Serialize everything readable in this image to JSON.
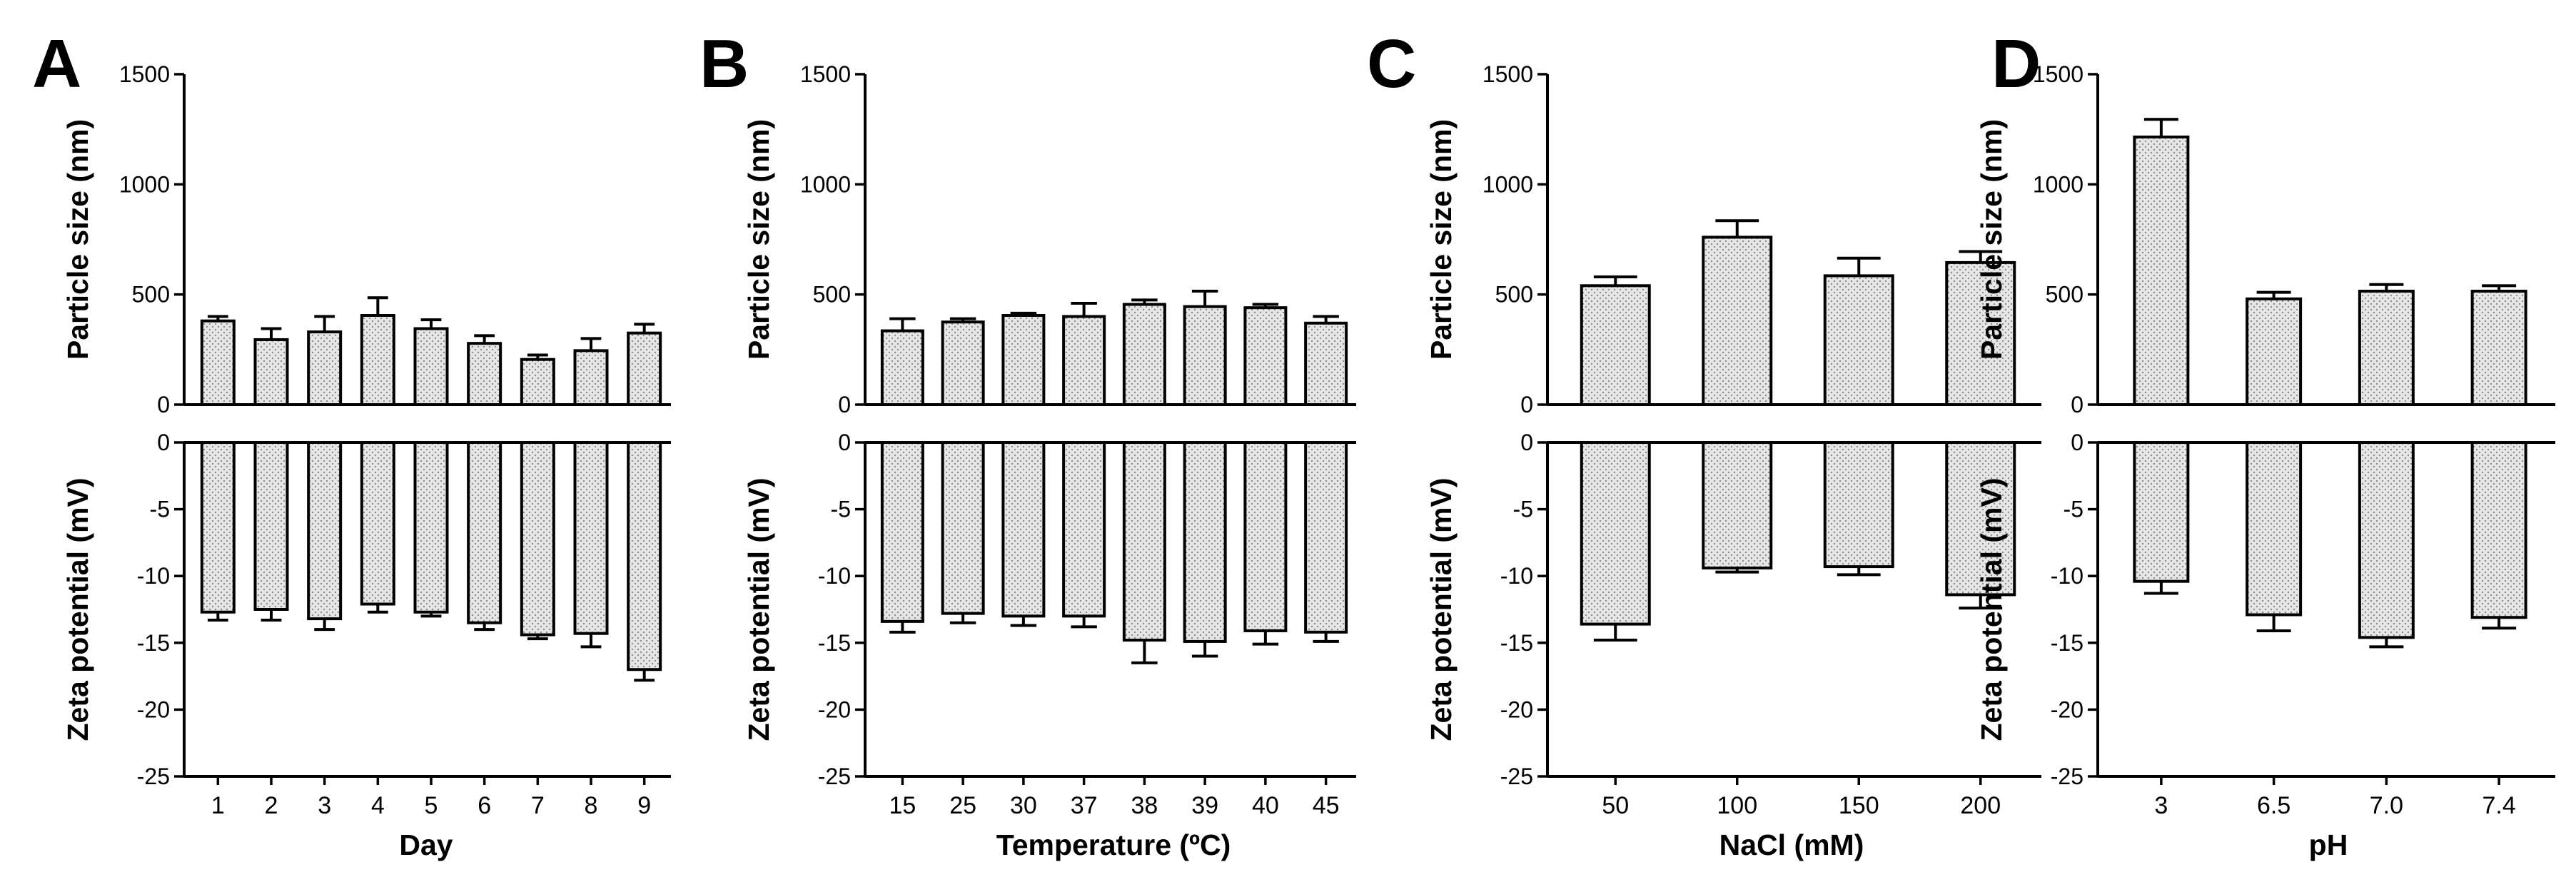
{
  "colors": {
    "bar_fill": "#e6e6e6",
    "bar_dots": "#8c8c8c",
    "axis": "#000000"
  },
  "chart_data": [
    {
      "panel": "A",
      "type": "bar",
      "xlabel": "Day",
      "categories": [
        "1",
        "2",
        "3",
        "4",
        "5",
        "6",
        "7",
        "8",
        "9"
      ],
      "top": {
        "ylabel": "Particle size (nm)",
        "ylim": [
          0,
          1500
        ],
        "yticks": [
          "0",
          "500",
          "1000",
          "1500"
        ],
        "values": [
          380,
          295,
          330,
          405,
          345,
          278,
          205,
          245,
          325
        ],
        "errors": [
          20,
          50,
          70,
          80,
          40,
          35,
          20,
          55,
          40
        ]
      },
      "bottom": {
        "ylabel": "Zeta potential (mV)",
        "ylim": [
          -25,
          0
        ],
        "yticks": [
          "0",
          "-5",
          "-10",
          "-15",
          "-20",
          "-25"
        ],
        "values": [
          -12.7,
          -12.5,
          -13.2,
          -12.1,
          -12.7,
          -13.5,
          -14.4,
          -14.3,
          -17.0
        ],
        "errors": [
          0.6,
          0.8,
          0.8,
          0.6,
          0.3,
          0.5,
          0.3,
          1.0,
          0.8
        ]
      }
    },
    {
      "panel": "B",
      "type": "bar",
      "xlabel": "Temperature (ºC)",
      "categories": [
        "15",
        "25",
        "30",
        "37",
        "38",
        "39",
        "40",
        "45"
      ],
      "top": {
        "ylabel": "Particle size (nm)",
        "ylim": [
          0,
          1500
        ],
        "yticks": [
          "0",
          "500",
          "1000",
          "1500"
        ],
        "values": [
          335,
          375,
          405,
          400,
          455,
          445,
          440,
          370
        ],
        "errors": [
          55,
          15,
          10,
          60,
          20,
          70,
          15,
          30
        ]
      },
      "bottom": {
        "ylabel": "Zeta potential (mV)",
        "ylim": [
          -25,
          0
        ],
        "yticks": [
          "0",
          "-5",
          "-10",
          "-15",
          "-20",
          "-25"
        ],
        "values": [
          -13.4,
          -12.8,
          -13.0,
          -13.0,
          -14.8,
          -14.9,
          -14.1,
          -14.2
        ],
        "errors": [
          0.8,
          0.7,
          0.7,
          0.8,
          1.7,
          1.1,
          1.0,
          0.7
        ]
      }
    },
    {
      "panel": "C",
      "type": "bar",
      "xlabel": "NaCl (mM)",
      "categories": [
        "50",
        "100",
        "150",
        "200"
      ],
      "top": {
        "ylabel": "Particle size (nm)",
        "ylim": [
          0,
          1500
        ],
        "yticks": [
          "0",
          "500",
          "1000",
          "1500"
        ],
        "values": [
          540,
          760,
          585,
          645
        ],
        "errors": [
          40,
          75,
          80,
          50
        ]
      },
      "bottom": {
        "ylabel": "Zeta potential (mV)",
        "ylim": [
          -25,
          0
        ],
        "yticks": [
          "0",
          "-5",
          "-10",
          "-15",
          "-20",
          "-25"
        ],
        "values": [
          -13.6,
          -9.4,
          -9.3,
          -11.4
        ],
        "errors": [
          1.2,
          0.3,
          0.6,
          1.0
        ]
      }
    },
    {
      "panel": "D",
      "type": "bar",
      "xlabel": "pH",
      "categories": [
        "3",
        "6.5",
        "7.0",
        "7.4"
      ],
      "top": {
        "ylabel": "Particle size (nm)",
        "ylim": [
          0,
          1500
        ],
        "yticks": [
          "0",
          "500",
          "1000",
          "1500"
        ],
        "values": [
          1215,
          480,
          515,
          515
        ],
        "errors": [
          80,
          30,
          30,
          25
        ]
      },
      "bottom": {
        "ylabel": "Zeta potential (mV)",
        "ylim": [
          -25,
          0
        ],
        "yticks": [
          "0",
          "-5",
          "-10",
          "-15",
          "-20",
          "-25"
        ],
        "values": [
          -10.4,
          -12.9,
          -14.6,
          -13.1
        ],
        "errors": [
          0.9,
          1.2,
          0.7,
          0.8
        ]
      }
    }
  ]
}
